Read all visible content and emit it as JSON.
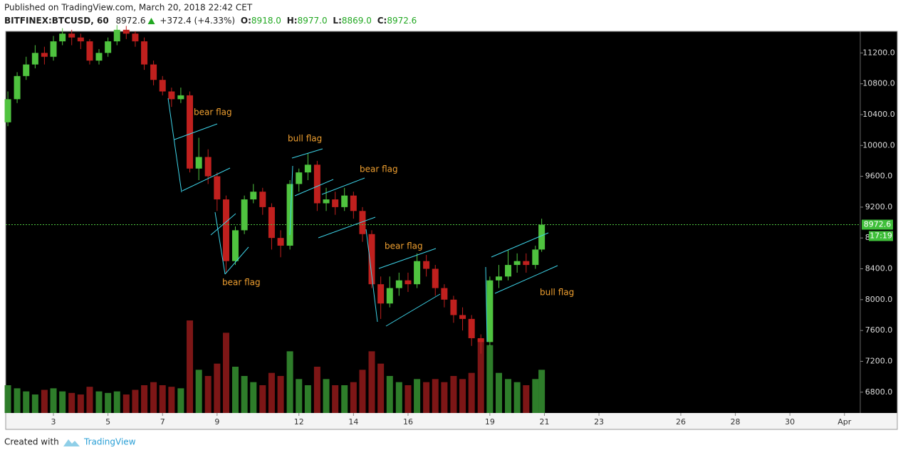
{
  "header": {
    "published": "Published on TradingView.com, March 20, 2018 22:42 CET",
    "symbol": "BITFINEX:BTCUSD, 60",
    "last": "8972.6",
    "change": "+372.4 (+4.33%)",
    "open_label": "O:",
    "open": "8918.0",
    "high_label": "H:",
    "high": "8977.0",
    "low_label": "L:",
    "low": "8869.0",
    "close_label": "C:",
    "close": "8972.6"
  },
  "chart_data": {
    "type": "candlestick",
    "x": [
      1.33,
      1.67,
      2,
      2.33,
      2.67,
      3,
      3.33,
      3.67,
      4,
      4.33,
      4.67,
      5,
      5.33,
      5.67,
      6,
      6.33,
      6.67,
      7,
      7.33,
      7.67,
      8,
      8.33,
      8.67,
      9,
      9.33,
      9.67,
      10,
      10.33,
      10.67,
      11,
      11.33,
      11.67,
      12,
      12.33,
      12.67,
      13,
      13.33,
      13.67,
      14,
      14.33,
      14.67,
      15,
      15.33,
      15.67,
      16,
      16.33,
      16.67,
      17,
      17.33,
      17.67,
      18,
      18.33,
      18.67,
      19,
      19.33,
      19.67,
      20,
      20.33,
      20.67,
      20.9
    ],
    "open": [
      10300,
      10600,
      10900,
      11050,
      11200,
      11150,
      11350,
      11450,
      11400,
      11350,
      11100,
      11200,
      11350,
      11500,
      11450,
      11350,
      11050,
      10850,
      10700,
      10600,
      10650,
      9700,
      9850,
      9600,
      9300,
      8500,
      8900,
      9300,
      9400,
      9200,
      8800,
      8700,
      9500,
      9650,
      9750,
      9250,
      9300,
      9200,
      9350,
      9150,
      8850,
      8200,
      7950,
      8150,
      8250,
      8200,
      8500,
      8400,
      8150,
      8000,
      7800,
      7750,
      7500,
      7450,
      8250,
      8300,
      8450,
      8500,
      8450,
      8650
    ],
    "high": [
      10700,
      10950,
      11150,
      11300,
      11280,
      11420,
      11520,
      11500,
      11450,
      11380,
      11250,
      11400,
      11560,
      11550,
      11480,
      11400,
      11100,
      10900,
      10750,
      10750,
      10700,
      10100,
      9950,
      9650,
      9350,
      8950,
      9350,
      9500,
      9450,
      9250,
      8900,
      9550,
      9700,
      9900,
      9800,
      9450,
      9400,
      9450,
      9400,
      9200,
      8900,
      8300,
      8300,
      8350,
      8350,
      8600,
      8580,
      8450,
      8200,
      8050,
      7900,
      7800,
      7550,
      8300,
      8450,
      8650,
      8600,
      8600,
      8700,
      9050
    ],
    "low": [
      10250,
      10550,
      10850,
      11000,
      11050,
      11100,
      11300,
      11300,
      11250,
      11050,
      11050,
      11150,
      11300,
      11380,
      11280,
      10980,
      10780,
      10650,
      10500,
      10550,
      9650,
      9550,
      9500,
      9150,
      8350,
      8450,
      8850,
      9250,
      9100,
      8650,
      8550,
      8650,
      9400,
      9550,
      9150,
      9150,
      9100,
      9150,
      9050,
      8750,
      8150,
      7750,
      7900,
      8050,
      8100,
      8150,
      8300,
      8050,
      7900,
      7700,
      7600,
      7400,
      7300,
      7400,
      8150,
      8250,
      8350,
      8350,
      8400,
      8620
    ],
    "close": [
      10600,
      10900,
      11050,
      11200,
      11150,
      11350,
      11450,
      11400,
      11350,
      11100,
      11200,
      11350,
      11500,
      11450,
      11350,
      11050,
      10850,
      10700,
      10600,
      10650,
      9700,
      9850,
      9600,
      9300,
      8500,
      8900,
      9300,
      9400,
      9200,
      8800,
      8700,
      9500,
      9650,
      9750,
      9250,
      9300,
      9200,
      9350,
      9150,
      8850,
      8200,
      7950,
      8150,
      8250,
      8200,
      8500,
      8400,
      8150,
      8000,
      7800,
      7750,
      7500,
      7450,
      8250,
      8300,
      8450,
      8500,
      8450,
      8650,
      8972.6
    ],
    "volume": [
      9000,
      8000,
      7000,
      6000,
      7500,
      8000,
      7000,
      6500,
      6000,
      8500,
      7000,
      6500,
      7000,
      6000,
      7500,
      9000,
      10000,
      9000,
      8500,
      8000,
      30000,
      14000,
      12000,
      16000,
      26000,
      15000,
      12000,
      10000,
      9000,
      13000,
      12000,
      20000,
      11000,
      9000,
      15000,
      11000,
      9000,
      9000,
      10000,
      14000,
      20000,
      16000,
      12000,
      10000,
      9000,
      11000,
      10000,
      11000,
      10000,
      12000,
      11000,
      13000,
      24000,
      22000,
      13000,
      11000,
      10000,
      9000,
      11000,
      14000
    ],
    "up_color": "#4fc33f",
    "down_color": "#c0201e",
    "volume_up_color": "#2e7d2a",
    "volume_down_color": "#7d1616",
    "xlim": [
      1.25,
      32.58
    ],
    "xticks": [
      3,
      5,
      7,
      9,
      12,
      14,
      16,
      19,
      21,
      23,
      26,
      28,
      30,
      {
        "value": 32,
        "label": "Apr"
      }
    ],
    "ylim": [
      6530,
      11480
    ],
    "yticks": [
      {
        "value": 6800,
        "label": "6800.0"
      },
      {
        "value": 7200,
        "label": "7200.0"
      },
      {
        "value": 7600,
        "label": "7600.0"
      },
      {
        "value": 8000,
        "label": "8000.0"
      },
      {
        "value": 8400,
        "label": "8400.0"
      },
      {
        "value": 8800,
        "label": "8800.0"
      },
      {
        "value": 9200,
        "label": "9200.0"
      },
      {
        "value": 9600,
        "label": "9600.0"
      },
      {
        "value": 10000,
        "label": "10000.0"
      },
      {
        "value": 10400,
        "label": "10400.0"
      },
      {
        "value": 10800,
        "label": "10800.0"
      },
      {
        "value": 11200,
        "label": "11200.0"
      }
    ],
    "grid": false,
    "last_price": 8972.6,
    "countdown": "17:19",
    "annotations": [
      "bear flag",
      "bull flag",
      "bear flag",
      "bear flag",
      "bear flag",
      "bull flag"
    ]
  },
  "footer": {
    "created": "Created with",
    "brand": "TradingView"
  }
}
